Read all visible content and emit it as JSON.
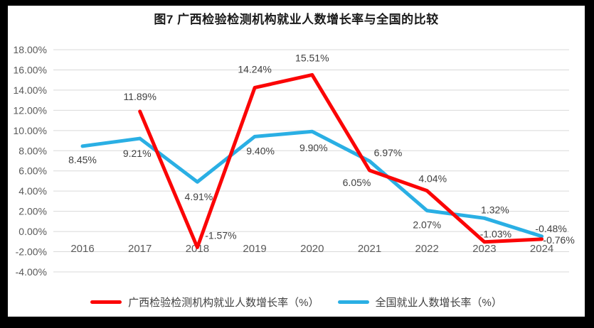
{
  "frame": {
    "border_color": "#000000",
    "background_color": "#ffffff"
  },
  "chart_data": {
    "type": "line",
    "title": "图7 广西检验检测机构就业人数增长率与全国的比较",
    "categories": [
      "2016",
      "2017",
      "2018",
      "2019",
      "2020",
      "2021",
      "2022",
      "2023",
      "2024"
    ],
    "series": [
      {
        "name": "广西检验检测机构就业人数增长率（%）",
        "color": "#fb0506",
        "values": [
          null,
          11.89,
          -1.57,
          14.24,
          15.51,
          6.05,
          4.04,
          -1.03,
          -0.76
        ],
        "labels": [
          "",
          "11.89%",
          "-1.57%",
          "14.24%",
          "15.51%",
          "6.05%",
          "4.04%",
          "-1.03%",
          "-0.76%"
        ]
      },
      {
        "name": "全国就业人数增长率（%）",
        "color": "#2aafe4",
        "values": [
          8.45,
          9.21,
          4.91,
          9.4,
          9.9,
          6.97,
          2.07,
          1.32,
          -0.48
        ],
        "labels": [
          "8.45%",
          "9.21%",
          "4.91%",
          "9.40%",
          "9.90%",
          "6.97%",
          "2.07%",
          "1.32%",
          "-0.48%"
        ]
      }
    ],
    "y_axis": {
      "min": -4,
      "max": 18,
      "step": 2,
      "tick_labels": [
        "18.00%",
        "16.00%",
        "14.00%",
        "12.00%",
        "10.00%",
        "8.00%",
        "6.00%",
        "4.00%",
        "2.00%",
        "0.00%",
        "-2.00%",
        "-4.00%"
      ]
    },
    "grid": true,
    "legend_position": "bottom",
    "gridline_color": "#d9d9d9",
    "axis_text_color": "#595959",
    "data_label_color": "#3f3f3f"
  }
}
